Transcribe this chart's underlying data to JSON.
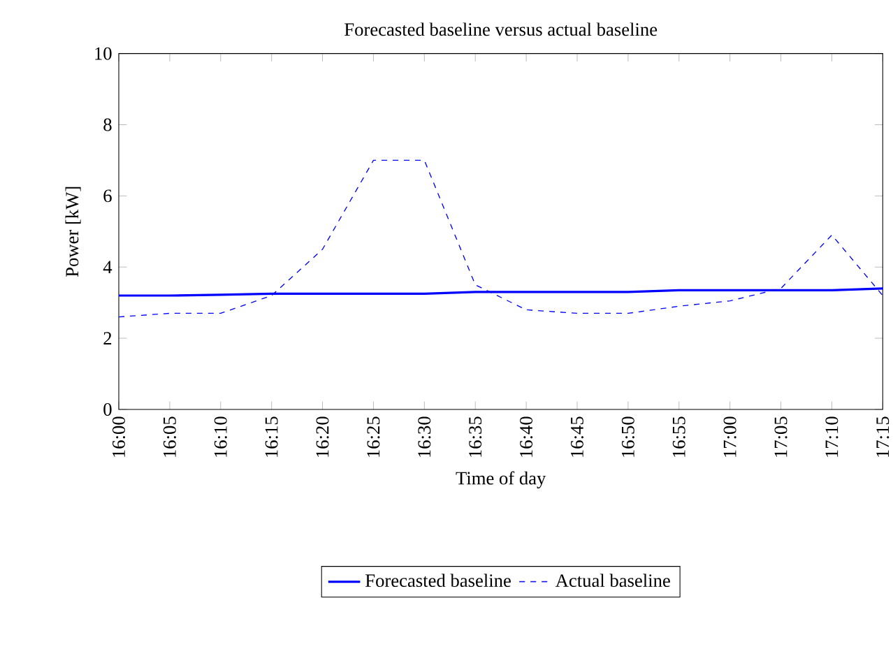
{
  "chart_data": {
    "type": "line",
    "title": "Forecasted baseline versus actual baseline",
    "xlabel": "Time of day",
    "ylabel": "Power [kW]",
    "categories": [
      "16:00",
      "16:05",
      "16:10",
      "16:15",
      "16:20",
      "16:25",
      "16:30",
      "16:35",
      "16:40",
      "16:45",
      "16:50",
      "16:55",
      "17:00",
      "17:05",
      "17:10",
      "17:15"
    ],
    "series": [
      {
        "name": "Forecasted baseline",
        "color": "#0000ff",
        "line_style": "solid",
        "values": [
          3.2,
          3.2,
          3.22,
          3.25,
          3.25,
          3.25,
          3.25,
          3.3,
          3.3,
          3.3,
          3.3,
          3.35,
          3.35,
          3.35,
          3.35,
          3.4
        ]
      },
      {
        "name": "Actual baseline",
        "color": "#0000ff",
        "line_style": "dashed",
        "values": [
          2.6,
          2.7,
          2.7,
          3.2,
          4.5,
          7,
          7,
          3.5,
          2.8,
          2.7,
          2.7,
          2.9,
          3.05,
          3.4,
          4.9,
          3.2
        ]
      }
    ],
    "ylim": [
      0,
      10
    ],
    "yticks": [
      0,
      2,
      4,
      6,
      8,
      10
    ],
    "grid": false,
    "legend": "bottom",
    "marker": "none"
  }
}
